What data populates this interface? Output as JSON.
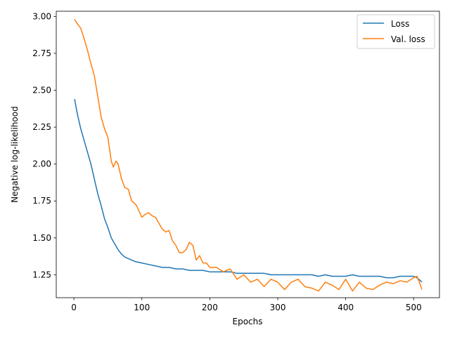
{
  "chart_data": {
    "type": "line",
    "xlabel": "Epochs",
    "ylabel": "Negative log-likelihood",
    "xlim": [
      -26,
      538
    ],
    "ylim": [
      1.095,
      3.035
    ],
    "xticks": [
      0,
      100,
      200,
      300,
      400,
      500
    ],
    "xtick_labels": [
      "0",
      "100",
      "200",
      "300",
      "400",
      "500"
    ],
    "yticks": [
      1.25,
      1.5,
      1.75,
      2.0,
      2.25,
      2.5,
      2.75,
      3.0
    ],
    "ytick_labels": [
      "1.25",
      "1.50",
      "1.75",
      "2.00",
      "2.25",
      "2.50",
      "2.75",
      "3.00"
    ],
    "grid": false,
    "legend_position": "upper right",
    "colors": {
      "loss": "#1f77b4",
      "val_loss": "#ff7f0e"
    },
    "series": [
      {
        "name": "Loss",
        "color": "#1f77b4",
        "x": [
          1,
          5,
          10,
          15,
          20,
          25,
          30,
          35,
          40,
          45,
          50,
          55,
          60,
          65,
          70,
          75,
          80,
          90,
          100,
          110,
          120,
          130,
          140,
          150,
          160,
          170,
          180,
          190,
          200,
          210,
          220,
          230,
          240,
          250,
          260,
          270,
          280,
          290,
          300,
          310,
          320,
          330,
          340,
          350,
          360,
          370,
          380,
          390,
          400,
          410,
          420,
          430,
          440,
          450,
          460,
          470,
          480,
          490,
          500,
          505,
          510,
          512
        ],
        "y": [
          2.44,
          2.34,
          2.24,
          2.16,
          2.08,
          2.0,
          1.9,
          1.8,
          1.72,
          1.63,
          1.57,
          1.5,
          1.46,
          1.42,
          1.39,
          1.37,
          1.36,
          1.34,
          1.33,
          1.32,
          1.31,
          1.3,
          1.3,
          1.29,
          1.29,
          1.28,
          1.28,
          1.28,
          1.27,
          1.27,
          1.27,
          1.27,
          1.26,
          1.26,
          1.26,
          1.26,
          1.26,
          1.25,
          1.25,
          1.25,
          1.25,
          1.25,
          1.25,
          1.25,
          1.24,
          1.25,
          1.24,
          1.24,
          1.24,
          1.25,
          1.24,
          1.24,
          1.24,
          1.24,
          1.23,
          1.23,
          1.24,
          1.24,
          1.24,
          1.23,
          1.21,
          1.2
        ]
      },
      {
        "name": "Val. loss",
        "color": "#ff7f0e",
        "x": [
          1,
          5,
          10,
          15,
          20,
          25,
          30,
          35,
          40,
          45,
          50,
          55,
          58,
          62,
          65,
          70,
          75,
          80,
          85,
          88,
          92,
          100,
          105,
          110,
          115,
          120,
          125,
          130,
          135,
          140,
          145,
          150,
          155,
          160,
          165,
          170,
          175,
          180,
          185,
          190,
          195,
          200,
          210,
          220,
          230,
          240,
          250,
          260,
          270,
          280,
          290,
          300,
          310,
          320,
          330,
          340,
          350,
          360,
          370,
          380,
          390,
          400,
          410,
          420,
          430,
          440,
          450,
          460,
          470,
          480,
          490,
          500,
          505,
          510,
          512
        ],
        "y": [
          2.98,
          2.95,
          2.92,
          2.85,
          2.77,
          2.68,
          2.6,
          2.46,
          2.32,
          2.24,
          2.18,
          2.02,
          1.98,
          2.02,
          2.0,
          1.9,
          1.84,
          1.83,
          1.75,
          1.74,
          1.72,
          1.64,
          1.66,
          1.67,
          1.65,
          1.64,
          1.6,
          1.56,
          1.54,
          1.55,
          1.48,
          1.45,
          1.4,
          1.4,
          1.42,
          1.47,
          1.45,
          1.35,
          1.38,
          1.33,
          1.33,
          1.3,
          1.3,
          1.27,
          1.29,
          1.22,
          1.25,
          1.2,
          1.22,
          1.17,
          1.22,
          1.2,
          1.15,
          1.2,
          1.22,
          1.17,
          1.16,
          1.14,
          1.2,
          1.18,
          1.15,
          1.22,
          1.14,
          1.2,
          1.16,
          1.15,
          1.18,
          1.2,
          1.19,
          1.21,
          1.2,
          1.23,
          1.24,
          1.18,
          1.15
        ]
      }
    ]
  }
}
